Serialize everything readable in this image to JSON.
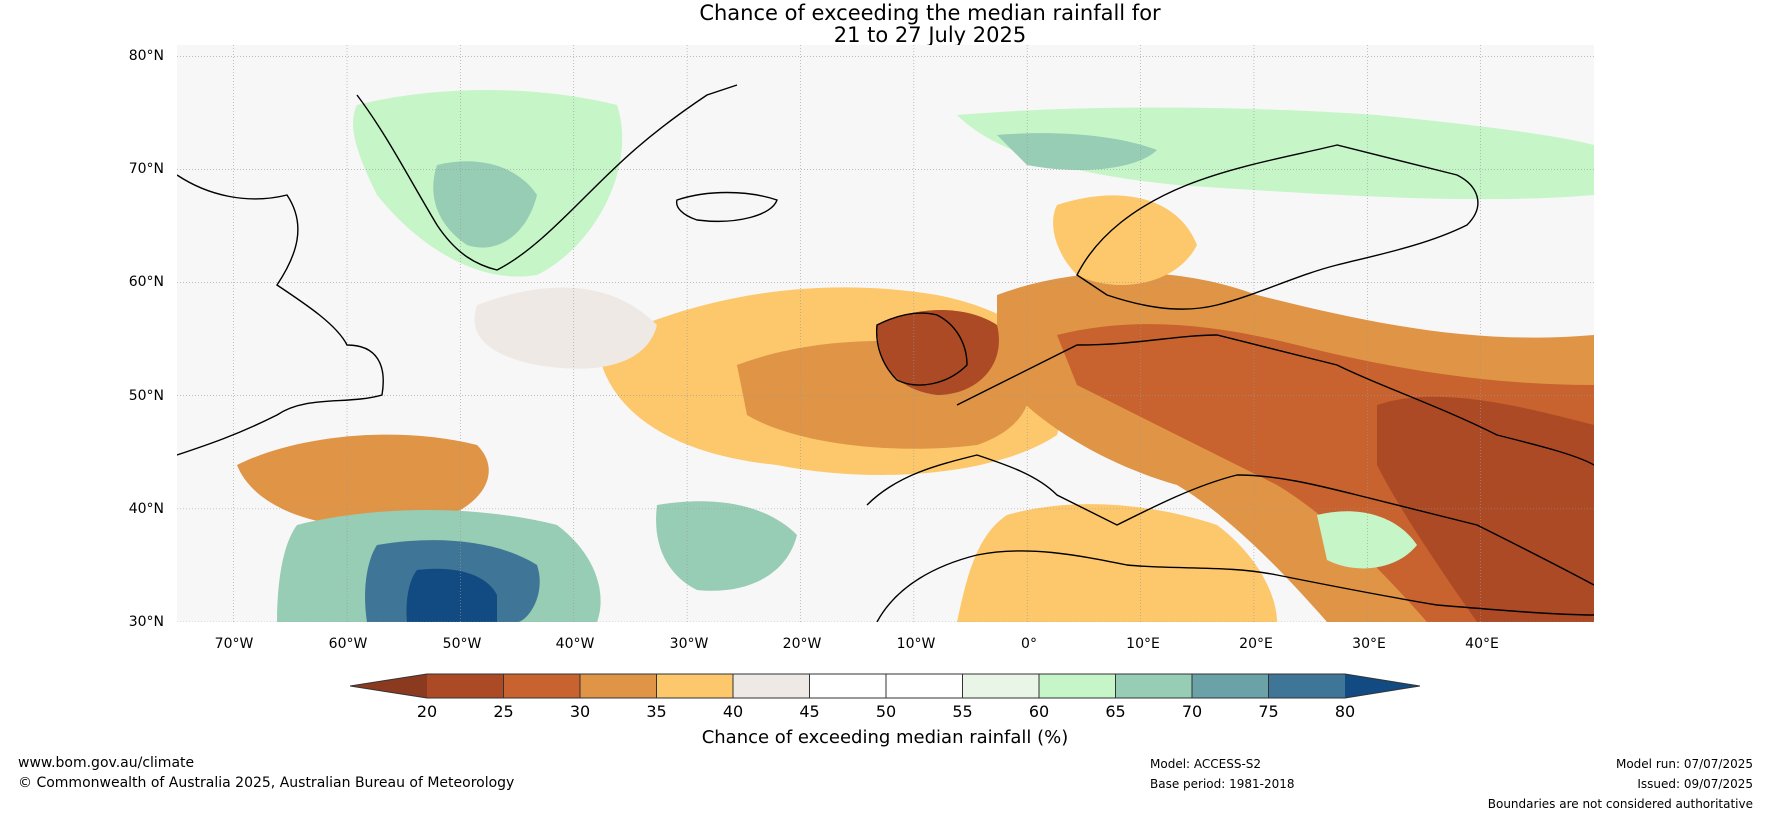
{
  "title": {
    "line1": "Chance of exceeding the median rainfall for",
    "line2": "21 to 27 July 2025"
  },
  "map": {
    "lat_labels": [
      "80°N",
      "70°N",
      "60°N",
      "50°N",
      "40°N",
      "30°N"
    ],
    "lon_labels": [
      "70°W",
      "60°W",
      "50°W",
      "40°W",
      "30°W",
      "20°W",
      "10°W",
      "0°",
      "10°E",
      "20°E",
      "30°E",
      "40°E"
    ],
    "lat_range": [
      30,
      81
    ],
    "lon_range": [
      -75,
      50
    ]
  },
  "colorbar": {
    "ticks": [
      "20",
      "25",
      "30",
      "35",
      "40",
      "45",
      "50",
      "55",
      "60",
      "65",
      "70",
      "75",
      "80"
    ],
    "colors": {
      "below_20": "#8c3a1f",
      "20-25": "#ad4a26",
      "25-30": "#c8622e",
      "30-35": "#e09446",
      "35-40": "#fdc86b",
      "40-45": "#eee9e4",
      "45-50": "#ffffff",
      "50-55": "#ffffff",
      "55-60": "#e9f6e7",
      "60-65": "#c6f5c8",
      "65-70": "#97ccb5",
      "70-75": "#6aa2a8",
      "75-80": "#3f7596",
      "above_80": "#114b82"
    },
    "label": "Chance of exceeding median rainfall (%)"
  },
  "footer": {
    "website": "www.bom.gov.au/climate",
    "copyright": "© Commonwealth of Australia 2025, Australian Bureau of Meteorology",
    "model": "Model: ACCESS-S2",
    "base_period": "Base period: 1981-2018",
    "model_run": "Model run: 07/07/2025",
    "issued": "Issued: 09/07/2025",
    "disclaimer": "Boundaries are not considered authoritative"
  }
}
